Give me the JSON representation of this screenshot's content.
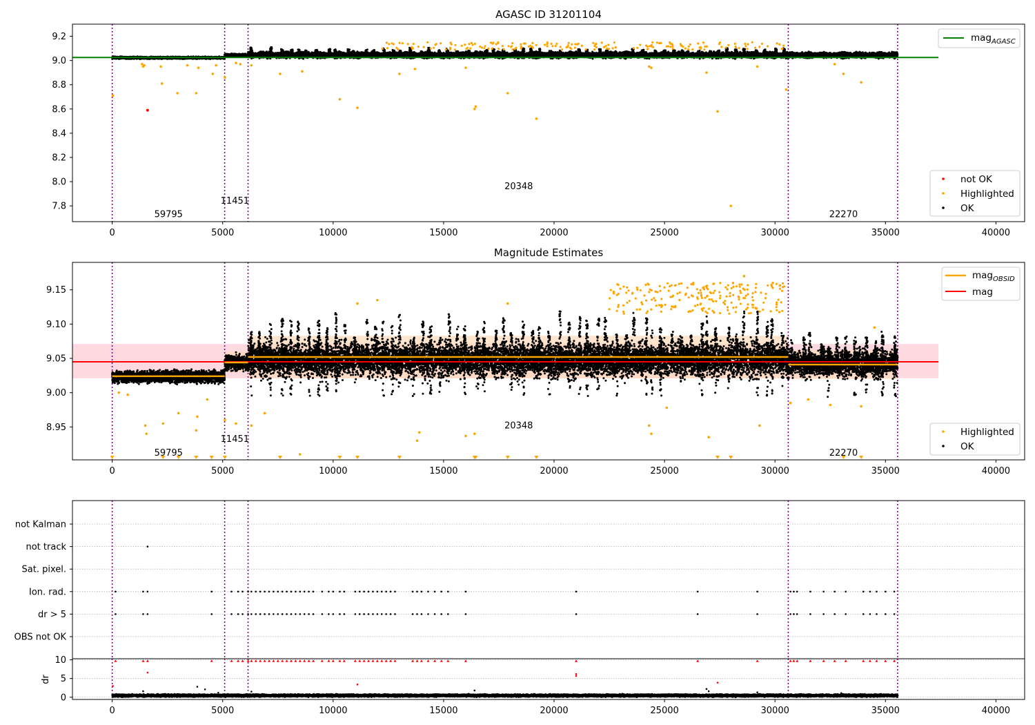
{
  "figure": {
    "background": "#ffffff",
    "colors": {
      "ok": "#000000",
      "highlighted": "#ffa500",
      "not_ok": "#ff0000",
      "mag_agasc": "#008000",
      "mag_obsid": "#ffa500",
      "mag": "#ff0000",
      "band_obsid": "#ffdab9",
      "band_mag": "#ffc0cb",
      "obs_boundary": "#800080",
      "flag_grid": "#b0b0b0"
    }
  },
  "chart_data": [
    {
      "type": "scatter",
      "panel": "agasc",
      "title": "AGASC ID 31201104",
      "xlabel": "",
      "ylabel": "",
      "xlim": [
        -1800,
        41300
      ],
      "ylim": [
        7.67,
        9.3
      ],
      "xticks": [
        0,
        5000,
        10000,
        15000,
        20000,
        25000,
        30000,
        35000,
        40000
      ],
      "xtick_labels": [
        "0",
        "5000",
        "10000",
        "15000",
        "20000",
        "25000",
        "30000",
        "35000",
        "40000"
      ],
      "yticks": [
        7.8,
        8.0,
        8.2,
        8.4,
        8.6,
        8.8,
        9.0,
        9.2
      ],
      "ytick_labels": [
        "7.8",
        "8.0",
        "8.2",
        "8.4",
        "8.6",
        "8.8",
        "9.0",
        "9.2"
      ],
      "obs_boundaries": [
        0,
        5090,
        6150,
        30600,
        35550
      ],
      "observation_labels": [
        {
          "text": "59795",
          "x": 2550,
          "y": 7.73
        },
        {
          "text": "11451",
          "x": 5550,
          "y": 7.84
        },
        {
          "text": "20348",
          "x": 18400,
          "y": 7.96
        },
        {
          "text": "22270",
          "x": 33100,
          "y": 7.73
        }
      ],
      "line_mag_agasc": {
        "name": "mag_AGASC",
        "x": [
          -1800,
          37400
        ],
        "y": [
          9.025,
          9.025
        ]
      },
      "ok_segments": [
        {
          "x_start": 0,
          "x_end": 5090,
          "center": 9.023,
          "half_width": 0.012
        },
        {
          "x_start": 5090,
          "x_end": 6150,
          "center": 9.044,
          "half_width": 0.014
        },
        {
          "x_start": 6150,
          "x_end": 30600,
          "center": 9.045,
          "half_width": 0.03
        },
        {
          "x_start": 30600,
          "x_end": 35550,
          "center": 9.045,
          "half_width": 0.028
        }
      ],
      "highlighted_points": [
        {
          "x": 30,
          "y": 8.71
        },
        {
          "x": 1350,
          "y": 8.97
        },
        {
          "x": 1400,
          "y": 8.95
        },
        {
          "x": 1450,
          "y": 8.96
        },
        {
          "x": 2200,
          "y": 8.95
        },
        {
          "x": 2250,
          "y": 8.81
        },
        {
          "x": 2950,
          "y": 8.73
        },
        {
          "x": 3400,
          "y": 8.96
        },
        {
          "x": 3800,
          "y": 8.73
        },
        {
          "x": 3900,
          "y": 8.94
        },
        {
          "x": 4550,
          "y": 8.89
        },
        {
          "x": 4700,
          "y": 8.96
        },
        {
          "x": 5100,
          "y": 8.86
        },
        {
          "x": 5600,
          "y": 8.98
        },
        {
          "x": 5800,
          "y": 8.97
        },
        {
          "x": 6300,
          "y": 8.96
        },
        {
          "x": 7600,
          "y": 8.89
        },
        {
          "x": 8600,
          "y": 8.91
        },
        {
          "x": 10300,
          "y": 8.68
        },
        {
          "x": 11100,
          "y": 8.61
        },
        {
          "x": 13000,
          "y": 8.89
        },
        {
          "x": 13700,
          "y": 8.93
        },
        {
          "x": 16000,
          "y": 8.94
        },
        {
          "x": 16400,
          "y": 8.6
        },
        {
          "x": 16450,
          "y": 8.62
        },
        {
          "x": 17900,
          "y": 8.73
        },
        {
          "x": 19200,
          "y": 8.52
        },
        {
          "x": 24300,
          "y": 8.95
        },
        {
          "x": 24400,
          "y": 8.94
        },
        {
          "x": 26900,
          "y": 8.9
        },
        {
          "x": 27400,
          "y": 8.58
        },
        {
          "x": 28000,
          "y": 7.8
        },
        {
          "x": 29200,
          "y": 8.95
        },
        {
          "x": 30500,
          "y": 8.76
        },
        {
          "x": 32700,
          "y": 8.97
        },
        {
          "x": 33100,
          "y": 8.89
        },
        {
          "x": 33900,
          "y": 8.82
        }
      ],
      "not_ok_points": [
        {
          "x": 1600,
          "y": 8.59
        }
      ],
      "legend_top": {
        "placement": "top-right",
        "entries": [
          {
            "label": "mag",
            "sub": "AGASC",
            "kind": "line",
            "color": "#008000"
          }
        ]
      },
      "legend_bottom": {
        "placement": "bottom-right",
        "entries": [
          {
            "label": "not OK",
            "kind": "dot",
            "color": "#ff0000"
          },
          {
            "label": "Highlighted",
            "kind": "dot",
            "color": "#ffa500"
          },
          {
            "label": "OK",
            "kind": "dot",
            "color": "#000000"
          }
        ]
      }
    },
    {
      "type": "scatter",
      "panel": "estimates",
      "title": "Magnitude Estimates",
      "xlabel": "",
      "ylabel": "",
      "xlim": [
        -1800,
        41300
      ],
      "ylim": [
        8.902,
        9.19
      ],
      "xticks": [
        0,
        5000,
        10000,
        15000,
        20000,
        25000,
        30000,
        35000,
        40000
      ],
      "xtick_labels": [
        "0",
        "5000",
        "10000",
        "15000",
        "20000",
        "25000",
        "30000",
        "35000",
        "40000"
      ],
      "yticks": [
        8.95,
        9.0,
        9.05,
        9.1,
        9.15
      ],
      "ytick_labels": [
        "8.95",
        "9.00",
        "9.05",
        "9.10",
        "9.15"
      ],
      "obs_boundaries": [
        0,
        5090,
        6150,
        30600,
        35550
      ],
      "observation_labels": [
        {
          "text": "59795",
          "x": 2550,
          "y": 8.912
        },
        {
          "text": "11451",
          "x": 5550,
          "y": 8.932
        },
        {
          "text": "20348",
          "x": 18400,
          "y": 8.952
        },
        {
          "text": "22270",
          "x": 33100,
          "y": 8.912
        }
      ],
      "mag_band": {
        "x": [
          -1800,
          37400
        ],
        "y_low": 9.021,
        "y_high": 9.071
      },
      "line_mag": {
        "name": "mag",
        "x": [
          -1800,
          37400
        ],
        "y": [
          9.045,
          9.045
        ]
      },
      "mag_obsid_segments": [
        {
          "x_start": 0,
          "x_end": 5090,
          "mag": 9.024,
          "band_low": 9.016,
          "band_high": 9.032
        },
        {
          "x_start": 5090,
          "x_end": 6150,
          "mag": 9.044,
          "band_low": 9.03,
          "band_high": 9.06
        },
        {
          "x_start": 6150,
          "x_end": 30600,
          "mag": 9.052,
          "band_low": 9.021,
          "band_high": 9.083
        },
        {
          "x_start": 30600,
          "x_end": 35550,
          "mag": 9.041,
          "band_low": 9.02,
          "band_high": 9.062
        }
      ],
      "ok_segments": [
        {
          "x_start": 0,
          "x_end": 5090,
          "center": 9.023,
          "half_width": 0.012
        },
        {
          "x_start": 5090,
          "x_end": 6150,
          "center": 9.044,
          "half_width": 0.016
        },
        {
          "x_start": 6150,
          "x_end": 30600,
          "center": 9.048,
          "half_width": 0.032
        },
        {
          "x_start": 30600,
          "x_end": 35550,
          "center": 9.042,
          "half_width": 0.026
        }
      ],
      "highlighted_points": [
        {
          "x": 300,
          "y": 9.0
        },
        {
          "x": 700,
          "y": 8.997
        },
        {
          "x": 1500,
          "y": 8.952
        },
        {
          "x": 1550,
          "y": 8.94
        },
        {
          "x": 2300,
          "y": 8.955
        },
        {
          "x": 3000,
          "y": 8.97
        },
        {
          "x": 3800,
          "y": 8.945
        },
        {
          "x": 3850,
          "y": 8.965
        },
        {
          "x": 4300,
          "y": 8.99
        },
        {
          "x": 5100,
          "y": 8.96
        },
        {
          "x": 5600,
          "y": 8.955
        },
        {
          "x": 6300,
          "y": 8.952
        },
        {
          "x": 6900,
          "y": 8.97
        },
        {
          "x": 8500,
          "y": 8.91
        },
        {
          "x": 11100,
          "y": 9.13
        },
        {
          "x": 12000,
          "y": 9.135
        },
        {
          "x": 13800,
          "y": 8.93
        },
        {
          "x": 13900,
          "y": 8.942
        },
        {
          "x": 16000,
          "y": 8.937
        },
        {
          "x": 16400,
          "y": 8.94
        },
        {
          "x": 17900,
          "y": 9.13
        },
        {
          "x": 22700,
          "y": 9.145
        },
        {
          "x": 24300,
          "y": 8.952
        },
        {
          "x": 24400,
          "y": 8.94
        },
        {
          "x": 25100,
          "y": 8.978
        },
        {
          "x": 26300,
          "y": 9.16
        },
        {
          "x": 27000,
          "y": 8.935
        },
        {
          "x": 28100,
          "y": 9.16
        },
        {
          "x": 28600,
          "y": 9.17
        },
        {
          "x": 29300,
          "y": 8.952
        },
        {
          "x": 29900,
          "y": 9.16
        },
        {
          "x": 30700,
          "y": 8.985
        },
        {
          "x": 31500,
          "y": 8.99
        },
        {
          "x": 32500,
          "y": 8.982
        },
        {
          "x": 33900,
          "y": 8.98
        },
        {
          "x": 34500,
          "y": 9.095
        }
      ],
      "clipped_markers_x": [
        0,
        2300,
        3000,
        3800,
        4500,
        5100,
        7600,
        10300,
        11100,
        13000,
        16400,
        16450,
        17900,
        19200,
        27400,
        28000,
        33100,
        33900
      ],
      "legend_top": {
        "placement": "top-right",
        "entries": [
          {
            "label": "mag",
            "sub": "OBSID",
            "kind": "line",
            "color": "#ffa500"
          },
          {
            "label": "mag",
            "kind": "line",
            "color": "#ff0000"
          }
        ]
      },
      "legend_bottom": {
        "placement": "bottom-right",
        "entries": [
          {
            "label": "Highlighted",
            "kind": "dot",
            "color": "#ffa500"
          },
          {
            "label": "OK",
            "kind": "dot",
            "color": "#000000"
          }
        ]
      }
    },
    {
      "type": "scatter",
      "panel": "flags",
      "title": "",
      "xlim": [
        -1800,
        41300
      ],
      "categories": [
        "not Kalman",
        "not track",
        "Sat. pixel.",
        "Ion. rad.",
        "dr > 5",
        "OBS not OK"
      ],
      "obs_boundaries": [
        0,
        5090,
        6150,
        30600,
        35550
      ],
      "not_track_x": [
        1600
      ],
      "ion_rad_x": [
        150,
        1400,
        1600,
        4500,
        5400,
        5700,
        5900,
        6150,
        6300,
        6500,
        6700,
        6900,
        7100,
        7300,
        7500,
        7700,
        7900,
        8100,
        8300,
        8500,
        8700,
        8900,
        9100,
        9500,
        9800,
        10000,
        10300,
        10500,
        11000,
        11200,
        11400,
        11600,
        11800,
        12000,
        12200,
        12400,
        12600,
        12800,
        13600,
        13800,
        14000,
        14300,
        14600,
        14900,
        15200,
        16000,
        21000,
        26500,
        29200,
        30700,
        30850,
        31000,
        31600,
        32200,
        32700,
        33200,
        34000,
        34300,
        34600,
        35000,
        35400
      ],
      "dr_gt5_x": [
        150,
        1400,
        1600,
        4500,
        5400,
        5700,
        5900,
        6150,
        6300,
        6500,
        6700,
        6900,
        7100,
        7300,
        7500,
        7700,
        7900,
        8100,
        8300,
        8500,
        8700,
        8900,
        9100,
        9500,
        9800,
        10000,
        10300,
        10500,
        11000,
        11200,
        11400,
        11600,
        11800,
        12000,
        12200,
        12400,
        12600,
        12800,
        13600,
        13800,
        14000,
        14300,
        14600,
        14900,
        15200,
        16000,
        21000,
        26500,
        29200,
        30700,
        30850,
        31000,
        31600,
        32200,
        32700,
        33200,
        34000,
        34300,
        34600,
        35000,
        35400
      ]
    },
    {
      "type": "scatter",
      "panel": "dr",
      "ylabel": "dr",
      "xlim": [
        -1800,
        41300
      ],
      "ylim": [
        -0.6,
        10.3
      ],
      "yticks": [
        0,
        5,
        10
      ],
      "ytick_labels": [
        "0",
        "5",
        "10"
      ],
      "xticks": [
        0,
        5000,
        10000,
        15000,
        20000,
        25000,
        30000,
        35000,
        40000
      ],
      "xtick_labels": [
        "0",
        "5000",
        "10000",
        "15000",
        "20000",
        "25000",
        "30000",
        "35000",
        "40000"
      ],
      "obs_boundaries": [
        0,
        5090,
        6150,
        30600,
        35550
      ],
      "ok_segments": [
        {
          "x_start": 0,
          "x_end": 35550,
          "center": 0.45,
          "half_width": 0.45
        }
      ],
      "ok_extra_points": [
        {
          "x": 1400,
          "y": 1.6
        },
        {
          "x": 2400,
          "y": 0.9
        },
        {
          "x": 3850,
          "y": 2.8
        },
        {
          "x": 4200,
          "y": 2.1
        },
        {
          "x": 4800,
          "y": 1.2
        },
        {
          "x": 6300,
          "y": 1.5
        },
        {
          "x": 16400,
          "y": 1.8
        },
        {
          "x": 26900,
          "y": 2.2
        },
        {
          "x": 27000,
          "y": 1.6
        },
        {
          "x": 29200,
          "y": 1.3
        },
        {
          "x": 33000,
          "y": 1.1
        }
      ],
      "not_ok_x": [
        150,
        1400,
        1600,
        4500,
        5400,
        5700,
        5900,
        6150,
        6300,
        6500,
        6700,
        6900,
        7100,
        7300,
        7500,
        7700,
        7900,
        8100,
        8300,
        8500,
        8700,
        8900,
        9100,
        9500,
        9800,
        10000,
        10300,
        10500,
        11000,
        11200,
        11400,
        11600,
        11800,
        12000,
        12200,
        12400,
        12600,
        12800,
        13600,
        13800,
        14000,
        14300,
        14600,
        14900,
        15200,
        16000,
        21000,
        26500,
        29200,
        30700,
        30850,
        31000,
        31600,
        32200,
        32700,
        33200,
        34000,
        34300,
        34600,
        35000,
        35400
      ],
      "not_ok_extra_points": [
        {
          "x": 30,
          "y": 3.0
        },
        {
          "x": 1600,
          "y": 6.6
        },
        {
          "x": 11100,
          "y": 3.4
        },
        {
          "x": 21000,
          "y": 5.7
        },
        {
          "x": 21000,
          "y": 6.2
        },
        {
          "x": 27400,
          "y": 3.9
        }
      ]
    }
  ]
}
